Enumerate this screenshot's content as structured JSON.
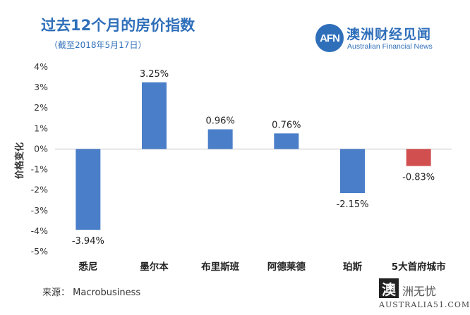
{
  "header": {
    "title": "过去12个月的房价指数",
    "subtitle": "（截至2018年5月17日）"
  },
  "logo": {
    "mark": "AFN",
    "name_cn": "澳洲财经见闻",
    "name_en": "Australian Financial News"
  },
  "footer": {
    "source": "来源：  Macrobusiness"
  },
  "watermark": {
    "glyph": "澳",
    "cn": "洲无忧",
    "en": "AUSTRALIA51.COM"
  },
  "colors": {
    "positive": "#4a7ec9",
    "negative_highlight": "#d14f4f",
    "title": "#2f6fba"
  },
  "chart_data": {
    "type": "bar",
    "categories": [
      "悉尼",
      "墨尔本",
      "布里斯班",
      "阿德莱德",
      "珀斯",
      "5大首府城市"
    ],
    "values": [
      -3.94,
      3.25,
      0.96,
      0.76,
      -2.15,
      -0.83
    ],
    "data_labels": [
      "-3.94%",
      "3.25%",
      "0.96%",
      "0.76%",
      "-2.15%",
      "-0.83%"
    ],
    "bar_colors": [
      "#4a7ec9",
      "#4a7ec9",
      "#4a7ec9",
      "#4a7ec9",
      "#4a7ec9",
      "#d14f4f"
    ],
    "ylabel": "价格变化",
    "xlabel": "",
    "ylim": [
      -5,
      4
    ],
    "yticks": [
      4,
      3,
      2,
      1,
      0,
      -1,
      -2,
      -3,
      -4,
      -5
    ],
    "ytick_labels": [
      "4%",
      "3%",
      "2%",
      "1%",
      "0%",
      "-1%",
      "-2%",
      "-3%",
      "-4%",
      "-5%"
    ],
    "grid": false,
    "legend": "none"
  }
}
